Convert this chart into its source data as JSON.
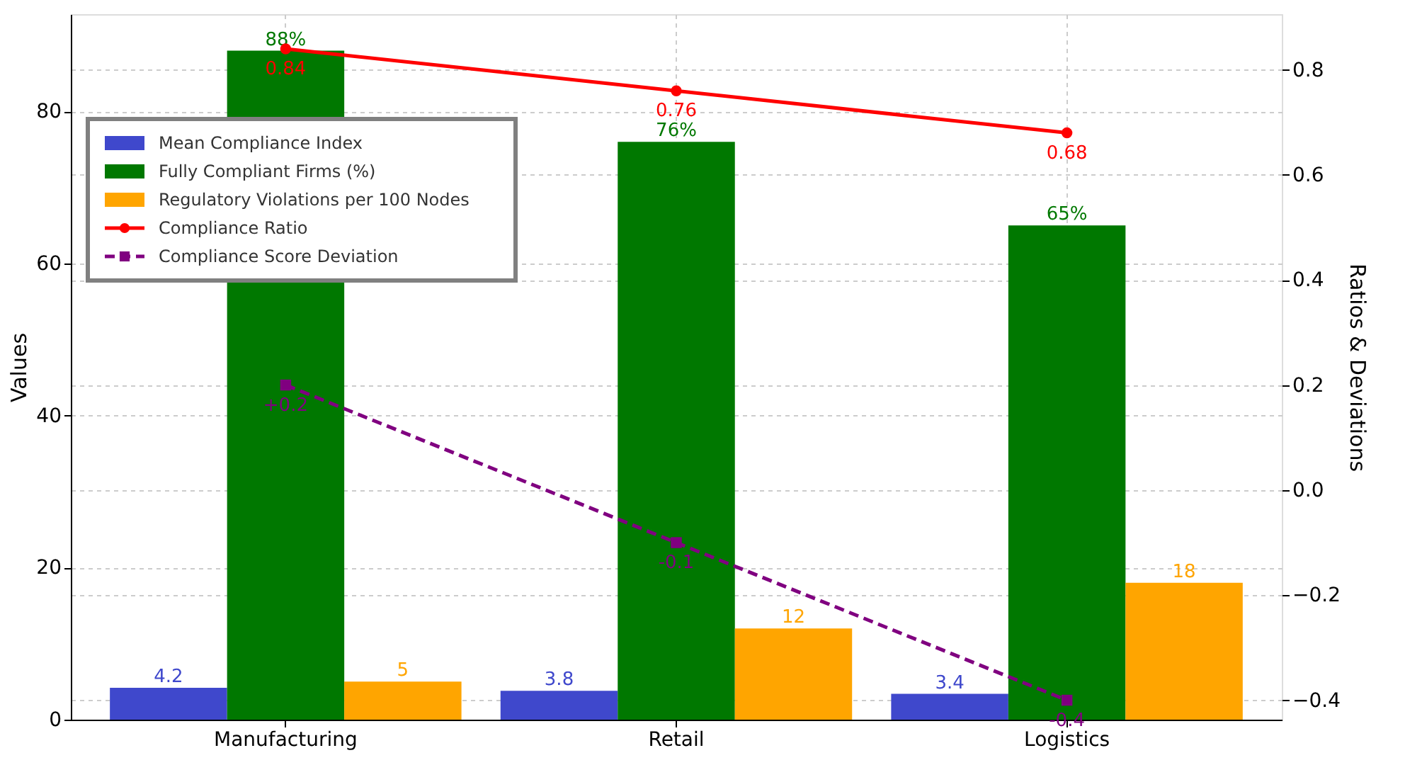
{
  "chart_data": {
    "type": "bar",
    "ylabel": "Values",
    "y2label": "Ratios & Deviations",
    "categories": [
      "Manufacturing",
      "Retail",
      "Logistics"
    ],
    "ylim": [
      0,
      92.8
    ],
    "yticks": [
      0,
      20,
      40,
      60,
      80
    ],
    "y2lim": [
      -0.437,
      0.906
    ],
    "y2ticks": [
      {
        "value": -0.4,
        "label": "−0.4"
      },
      {
        "value": -0.2,
        "label": "−0.2"
      },
      {
        "value": 0,
        "label": "0.0"
      },
      0.2,
      0.4,
      0.6,
      0.8
    ],
    "grid": true,
    "legend": "top left",
    "series": [
      {
        "name": "Mean Compliance Index",
        "color": "#3f48cc",
        "values": [
          4.2,
          3.8,
          3.4
        ],
        "value_labels": [
          "4.2",
          "3.8",
          "3.4"
        ]
      },
      {
        "name": "Fully Compliant Firms (%)",
        "color": "#007800",
        "values": [
          88,
          76,
          65
        ],
        "value_labels": [
          "88%",
          "76%",
          "65%"
        ]
      },
      {
        "name": "Regulatory Violations per 100 Nodes",
        "color": "#ffa500",
        "values": [
          5,
          12,
          18
        ],
        "value_labels": [
          "5",
          "12",
          "18"
        ]
      },
      {
        "name": "Compliance Ratio",
        "type": "line",
        "axis": "y2",
        "color": "#ff0000",
        "marker": "circle",
        "line_style": "solid",
        "values": [
          0.84,
          0.76,
          0.68
        ],
        "value_labels": [
          "0.84",
          "0.76",
          "0.68"
        ]
      },
      {
        "name": "Compliance Score Deviation",
        "type": "line",
        "axis": "y2",
        "color": "#800080",
        "marker": "square",
        "line_style": "dashed",
        "values": [
          0.2,
          -0.1,
          -0.4
        ],
        "value_labels": [
          "+0.2",
          "-0.1",
          "-0.4"
        ]
      }
    ]
  }
}
